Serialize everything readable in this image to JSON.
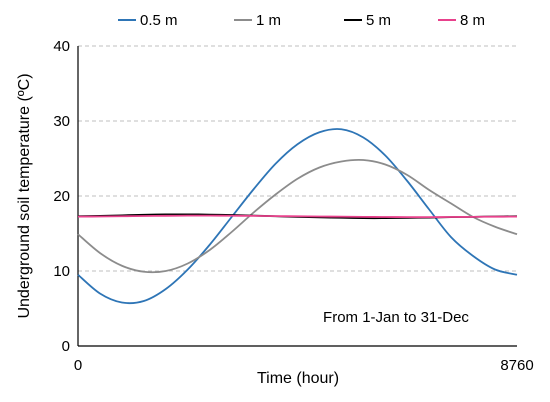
{
  "chart_data": {
    "type": "line",
    "xlabel": "Time (hour)",
    "ylabel": "Underground  soil temperature (ºC)",
    "xlim": [
      0,
      8760
    ],
    "ylim": [
      0,
      40
    ],
    "x_ticks": [
      {
        "value": 0,
        "label": "0"
      },
      {
        "value": 8760,
        "label": "8760"
      }
    ],
    "y_ticks": [
      {
        "value": 0,
        "label": "0"
      },
      {
        "value": 10,
        "label": "10"
      },
      {
        "value": 20,
        "label": "20"
      },
      {
        "value": 30,
        "label": "30"
      },
      {
        "value": 40,
        "label": "40"
      }
    ],
    "grid": "horizontal-dashed",
    "legend": "top",
    "annotation": "From 1-Jan to 31-Dec",
    "x": [
      0,
      438,
      876,
      1314,
      1752,
      2190,
      2628,
      3066,
      3504,
      3942,
      4380,
      4818,
      5256,
      5694,
      6132,
      6570,
      7008,
      7446,
      7884,
      8322,
      8760
    ],
    "series": [
      {
        "name": "0.5 m",
        "color": "#2e75b6",
        "values": [
          9.5,
          7.0,
          5.8,
          6.0,
          7.6,
          10.2,
          13.5,
          17.2,
          20.9,
          24.3,
          26.9,
          28.5,
          28.9,
          27.8,
          25.4,
          22.0,
          18.2,
          14.5,
          12.0,
          10.2,
          9.5
        ]
      },
      {
        "name": "1 m",
        "color": "#8c8c8c",
        "values": [
          14.9,
          12.4,
          10.7,
          9.9,
          10.0,
          11.0,
          12.8,
          15.2,
          17.8,
          20.2,
          22.3,
          23.8,
          24.6,
          24.8,
          24.2,
          22.8,
          20.8,
          19.0,
          17.2,
          15.9,
          14.9
        ]
      },
      {
        "name": "5 m",
        "color": "#000000",
        "values": [
          17.3,
          17.35,
          17.42,
          17.5,
          17.55,
          17.55,
          17.52,
          17.46,
          17.38,
          17.3,
          17.22,
          17.15,
          17.1,
          17.05,
          17.05,
          17.08,
          17.12,
          17.18,
          17.22,
          17.27,
          17.3
        ]
      },
      {
        "name": "8 m",
        "color": "#e8418c",
        "values": [
          17.25,
          17.27,
          17.3,
          17.33,
          17.36,
          17.38,
          17.38,
          17.37,
          17.35,
          17.32,
          17.3,
          17.27,
          17.25,
          17.22,
          17.2,
          17.18,
          17.18,
          17.2,
          17.22,
          17.24,
          17.25
        ]
      }
    ]
  }
}
